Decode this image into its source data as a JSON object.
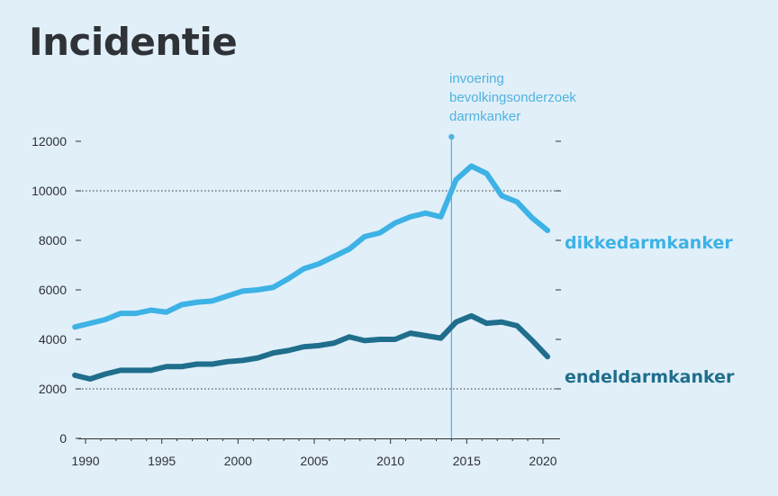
{
  "chart_data": {
    "type": "line",
    "title": "Incidentie",
    "x": [
      1989,
      1990,
      1991,
      1992,
      1993,
      1994,
      1995,
      1996,
      1997,
      1998,
      1999,
      2000,
      2001,
      2002,
      2003,
      2004,
      2005,
      2006,
      2007,
      2008,
      2009,
      2010,
      2011,
      2012,
      2013,
      2014,
      2015,
      2016,
      2017,
      2018,
      2019,
      2020
    ],
    "series": [
      {
        "name": "dikkedarmkanker",
        "color": "#3db2e5",
        "values": [
          4500,
          4650,
          4800,
          5050,
          5050,
          5180,
          5100,
          5400,
          5500,
          5550,
          5750,
          5950,
          6000,
          6100,
          6450,
          6850,
          7050,
          7350,
          7650,
          8150,
          8300,
          8700,
          8950,
          9100,
          8950,
          10450,
          11000,
          10700,
          9800,
          9550,
          8900,
          8400
        ]
      },
      {
        "name": "endeldarmkanker",
        "color": "#1f6e8c",
        "values": [
          2550,
          2400,
          2600,
          2750,
          2750,
          2750,
          2900,
          2900,
          3000,
          3000,
          3100,
          3150,
          3250,
          3450,
          3550,
          3700,
          3750,
          3850,
          4100,
          3950,
          4000,
          4000,
          4250,
          4150,
          4050,
          4700,
          4950,
          4650,
          4700,
          4550,
          3950,
          3300
        ]
      }
    ],
    "xticks": [
      "1990",
      "1995",
      "2000",
      "2005",
      "2010",
      "2015",
      "2020"
    ],
    "yticks": [
      "0",
      "2000",
      "4000",
      "6000",
      "8000",
      "10000",
      "12000"
    ],
    "xlim": [
      1989,
      2021
    ],
    "ylim": [
      0,
      12000
    ],
    "grid": "dotted horizontal lines at 2000 and 10000",
    "annotation": {
      "x": 2014,
      "lines": [
        "invoering",
        "bevolkingsonderzoek",
        "darmkanker"
      ],
      "color": "#4fb3de"
    }
  }
}
